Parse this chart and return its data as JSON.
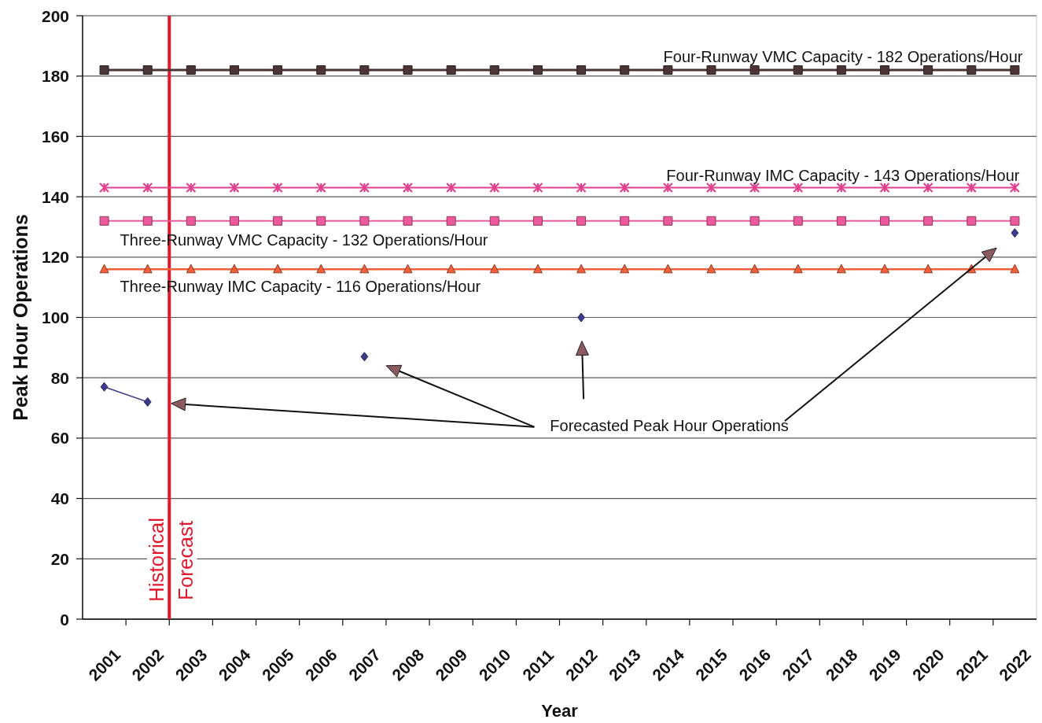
{
  "chart_data": {
    "type": "line",
    "xlabel": "Year",
    "ylabel": "Peak Hour Operations",
    "x": [
      2001,
      2002,
      2003,
      2004,
      2005,
      2006,
      2007,
      2008,
      2009,
      2010,
      2011,
      2012,
      2013,
      2014,
      2015,
      2016,
      2017,
      2018,
      2019,
      2020,
      2021,
      2022
    ],
    "xlim": [
      2000.5,
      2022.5
    ],
    "xticks": [
      2001,
      {
        "value": 2001.5,
        "label": null
      },
      2002,
      {
        "value": 2002.5,
        "label": null
      },
      2003,
      {
        "value": 2003.5,
        "label": null
      },
      2004,
      {
        "value": 2004.5,
        "label": null
      },
      2005,
      {
        "value": 2005.5,
        "label": null
      },
      2006,
      {
        "value": 2006.5,
        "label": null
      },
      2007,
      {
        "value": 2007.5,
        "label": null
      },
      2008,
      {
        "value": 2008.5,
        "label": null
      },
      2009,
      {
        "value": 2009.5,
        "label": null
      },
      2010,
      {
        "value": 2010.5,
        "label": null
      },
      2011,
      {
        "value": 2011.5,
        "label": null
      },
      2012,
      {
        "value": 2012.5,
        "label": null
      },
      2013,
      {
        "value": 2013.5,
        "label": null
      },
      2014,
      {
        "value": 2014.5,
        "label": null
      },
      2015,
      {
        "value": 2015.5,
        "label": null
      },
      2016,
      {
        "value": 2016.5,
        "label": null
      },
      2017,
      {
        "value": 2017.5,
        "label": null
      },
      2018,
      {
        "value": 2018.5,
        "label": null
      },
      2019,
      {
        "value": 2019.5,
        "label": null
      },
      2020,
      {
        "value": 2020.5,
        "label": null
      },
      2021,
      {
        "value": 2021.5,
        "label": null
      },
      2022
    ],
    "ylim": [
      0,
      200
    ],
    "yticks": [
      0,
      20,
      40,
      60,
      80,
      100,
      120,
      140,
      160,
      180,
      200
    ],
    "grid": "y",
    "legend": false,
    "line_style": "solid",
    "series": [
      {
        "name": "Four-Runway VMC Capacity - 182 Operations/Hour",
        "color": "#4a3436",
        "marker": "square",
        "values": [
          182,
          182,
          182,
          182,
          182,
          182,
          182,
          182,
          182,
          182,
          182,
          182,
          182,
          182,
          182,
          182,
          182,
          182,
          182,
          182,
          182,
          182
        ]
      },
      {
        "name": "Four-Runway IMC Capacity - 143 Operations/Hour",
        "color": "#e0408e",
        "marker": "cross",
        "values": [
          143,
          143,
          143,
          143,
          143,
          143,
          143,
          143,
          143,
          143,
          143,
          143,
          143,
          143,
          143,
          143,
          143,
          143,
          143,
          143,
          143,
          143
        ]
      },
      {
        "name": "Three-Runway VMC Capacity - 132 Operations/Hour",
        "color": "#ec5a9c",
        "marker": "square",
        "values": [
          132,
          132,
          132,
          132,
          132,
          132,
          132,
          132,
          132,
          132,
          132,
          132,
          132,
          132,
          132,
          132,
          132,
          132,
          132,
          132,
          132,
          132
        ]
      },
      {
        "name": "Three-Runway IMC Capacity - 116 Operations/Hour",
        "color": "#f0603a",
        "marker": "triangle",
        "values": [
          116,
          116,
          116,
          116,
          116,
          116,
          116,
          116,
          116,
          116,
          116,
          116,
          116,
          116,
          116,
          116,
          116,
          116,
          116,
          116,
          116,
          116
        ]
      },
      {
        "color": "#3c3c8c",
        "marker": "diamond",
        "values": [
          77,
          72,
          null,
          null,
          null,
          null,
          87,
          null,
          null,
          null,
          null,
          100,
          null,
          null,
          null,
          null,
          null,
          null,
          null,
          null,
          null,
          128
        ]
      }
    ],
    "ref_lines": [
      {
        "axis": "x",
        "value": 2002.5,
        "label": "Historical",
        "color": "#e3182d"
      }
    ],
    "annotations": [
      "Forecast",
      "Forecasted Peak Hour Operations"
    ]
  }
}
